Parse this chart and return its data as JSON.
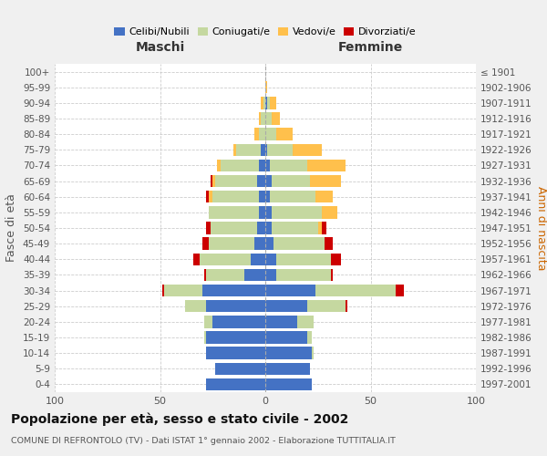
{
  "age_groups": [
    "0-4",
    "5-9",
    "10-14",
    "15-19",
    "20-24",
    "25-29",
    "30-34",
    "35-39",
    "40-44",
    "45-49",
    "50-54",
    "55-59",
    "60-64",
    "65-69",
    "70-74",
    "75-79",
    "80-84",
    "85-89",
    "90-94",
    "95-99",
    "100+"
  ],
  "birth_years": [
    "1997-2001",
    "1992-1996",
    "1987-1991",
    "1982-1986",
    "1977-1981",
    "1972-1976",
    "1967-1971",
    "1962-1966",
    "1957-1961",
    "1952-1956",
    "1947-1951",
    "1942-1946",
    "1937-1941",
    "1932-1936",
    "1927-1931",
    "1922-1926",
    "1917-1921",
    "1912-1916",
    "1907-1911",
    "1902-1906",
    "≤ 1901"
  ],
  "maschi": {
    "celibe": [
      28,
      24,
      28,
      28,
      25,
      28,
      30,
      10,
      7,
      5,
      4,
      3,
      3,
      4,
      3,
      2,
      0,
      0,
      0,
      0,
      0
    ],
    "coniugato": [
      0,
      0,
      0,
      1,
      4,
      10,
      18,
      18,
      24,
      22,
      22,
      24,
      22,
      20,
      18,
      12,
      3,
      2,
      1,
      0,
      0
    ],
    "vedovo": [
      0,
      0,
      0,
      0,
      0,
      0,
      0,
      0,
      0,
      0,
      0,
      0,
      2,
      1,
      2,
      1,
      2,
      1,
      1,
      0,
      0
    ],
    "divorziato": [
      0,
      0,
      0,
      0,
      0,
      0,
      1,
      1,
      3,
      3,
      2,
      0,
      1,
      1,
      0,
      0,
      0,
      0,
      0,
      0,
      0
    ]
  },
  "femmine": {
    "nubile": [
      22,
      21,
      22,
      20,
      15,
      20,
      24,
      5,
      5,
      4,
      3,
      3,
      2,
      3,
      2,
      1,
      0,
      0,
      1,
      0,
      0
    ],
    "coniugata": [
      0,
      0,
      1,
      2,
      8,
      18,
      38,
      26,
      26,
      24,
      22,
      24,
      22,
      18,
      18,
      12,
      5,
      3,
      1,
      0,
      0
    ],
    "vedova": [
      0,
      0,
      0,
      0,
      0,
      0,
      0,
      0,
      0,
      0,
      2,
      7,
      8,
      15,
      18,
      14,
      8,
      4,
      3,
      1,
      0
    ],
    "divorziata": [
      0,
      0,
      0,
      0,
      0,
      1,
      4,
      1,
      5,
      4,
      2,
      0,
      0,
      0,
      0,
      0,
      0,
      0,
      0,
      0,
      0
    ]
  },
  "colors": {
    "celibe": "#4472c4",
    "coniugato": "#c5d8a0",
    "vedovo": "#ffc04c",
    "divorziato": "#cc0000"
  },
  "xlim": 100,
  "title": "Popolazione per età, sesso e stato civile - 2002",
  "subtitle": "COMUNE DI REFRONTOLO (TV) - Dati ISTAT 1° gennaio 2002 - Elaborazione TUTTITALIA.IT",
  "xlabel_left": "Maschi",
  "xlabel_right": "Femmine",
  "ylabel_left": "Fasce di età",
  "ylabel_right": "Anni di nascita",
  "bg_color": "#f0f0f0",
  "plot_bg": "#ffffff"
}
